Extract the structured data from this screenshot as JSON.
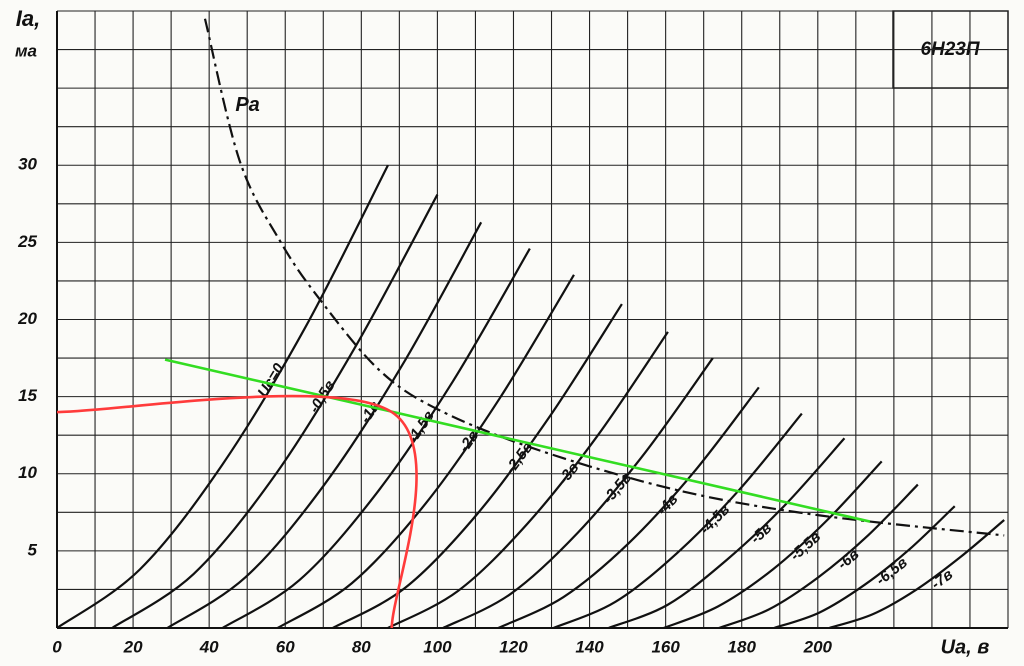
{
  "chart_data": {
    "type": "line",
    "title": "6Н23П",
    "x_label": "Uа, в",
    "y_label": [
      "Iа,",
      "ма"
    ],
    "xlim": [
      0,
      250
    ],
    "ylim": [
      0,
      40
    ],
    "xticks": [
      0,
      20,
      40,
      60,
      80,
      100,
      120,
      140,
      160,
      180,
      200
    ],
    "yticks": [
      5,
      10,
      15,
      20,
      25,
      30
    ],
    "xgrid": [
      0,
      10,
      20,
      30,
      40,
      50,
      60,
      70,
      80,
      90,
      100,
      110,
      120,
      130,
      140,
      150,
      160,
      170,
      180,
      190,
      200,
      210,
      220,
      230,
      240,
      250
    ],
    "ygrid": [
      0,
      2.5,
      5,
      7.5,
      10,
      12.5,
      15,
      17.5,
      20,
      22.5,
      25,
      27.5,
      30,
      32.5,
      35,
      37.5,
      40
    ],
    "series": [
      {
        "name": "Uс=0",
        "color": "#111111",
        "x": [
          0,
          21.8,
          43.5,
          65.3,
          87
        ],
        "values": [
          0,
          3.8,
          10.6,
          19.5,
          30
        ]
      },
      {
        "name": "-0,5в",
        "color": "#111111",
        "x": [
          14.5,
          35.9,
          57.3,
          78.6,
          100
        ],
        "values": [
          0,
          3.5,
          9.9,
          18.3,
          28.1
        ]
      },
      {
        "name": "-1в",
        "color": "#111111",
        "x": [
          29,
          49.6,
          70.3,
          90.9,
          111.5
        ],
        "values": [
          0,
          3.3,
          9.3,
          17.1,
          26.3
        ]
      },
      {
        "name": "-1,5в",
        "color": "#111111",
        "x": [
          43.5,
          63.7,
          83.9,
          104.1,
          124.3
        ],
        "values": [
          0,
          3.1,
          8.7,
          16.0,
          24.6
        ]
      },
      {
        "name": "-2в",
        "color": "#111111",
        "x": [
          58,
          77.5,
          97,
          116.4,
          135.9
        ],
        "values": [
          0,
          2.9,
          8.1,
          14.9,
          22.9
        ]
      },
      {
        "name": "-2,5в",
        "color": "#111111",
        "x": [
          72.5,
          91.5,
          110.5,
          129.5,
          148.5
        ],
        "values": [
          0,
          2.6,
          7.4,
          13.7,
          21
        ]
      },
      {
        "name": "-3в",
        "color": "#111111",
        "x": [
          87,
          105.4,
          123.8,
          142.2,
          160.6
        ],
        "values": [
          0,
          2.4,
          6.8,
          12.5,
          19.2
        ]
      },
      {
        "name": "-3,5в",
        "color": "#111111",
        "x": [
          101.5,
          119.2,
          137,
          154.7,
          172.4
        ],
        "values": [
          0,
          2.2,
          6.2,
          11.4,
          17.5
        ]
      },
      {
        "name": "-4в",
        "color": "#111111",
        "x": [
          116,
          133.1,
          150.3,
          167.4,
          184.5
        ],
        "values": [
          0,
          2.0,
          5.5,
          10.1,
          15.6
        ]
      },
      {
        "name": "-4,5в",
        "color": "#111111",
        "x": [
          130.5,
          146.8,
          163.2,
          179.5,
          195.8
        ],
        "values": [
          0,
          1.7,
          4.9,
          9.0,
          13.9
        ]
      },
      {
        "name": "-5в",
        "color": "#111111",
        "x": [
          145,
          160.5,
          176,
          191.5,
          207
        ],
        "values": [
          0,
          1.5,
          4.4,
          8.0,
          12.3
        ]
      },
      {
        "name": "-5,5в",
        "color": "#111111",
        "x": [
          159.5,
          173.8,
          188.2,
          202.5,
          216.8
        ],
        "values": [
          0,
          1.4,
          3.8,
          7.0,
          10.8
        ]
      },
      {
        "name": "-6в",
        "color": "#111111",
        "x": [
          174,
          187.1,
          200.2,
          213.2,
          226.3
        ],
        "values": [
          0,
          1.2,
          3.3,
          6.0,
          9.3
        ]
      },
      {
        "name": "-6,5в",
        "color": "#111111",
        "x": [
          188.5,
          200.4,
          212.3,
          224.1,
          236
        ],
        "values": [
          0,
          1.0,
          2.8,
          5.1,
          7.9
        ]
      },
      {
        "name": "-7в",
        "color": "#111111",
        "x": [
          203,
          214.5,
          226,
          237.5,
          249
        ],
        "values": [
          0,
          0.9,
          2.5,
          4.6,
          7
        ]
      },
      {
        "name": "Pа",
        "color": "#111111",
        "style": "dashdot",
        "x": [
          38.9,
          48,
          58.6,
          69.1,
          84.8,
          100.7,
          127,
          163.7,
          200.5,
          249
        ],
        "values": [
          39.5,
          30.3,
          25.1,
          21.3,
          16.7,
          14.1,
          11.5,
          8.9,
          7.3,
          6.0
        ]
      },
      {
        "color": "#33dd22",
        "x": [
          28.4,
          213.7
        ],
        "values": [
          17.4,
          6.9
        ]
      },
      {
        "color": "#ff3b3b",
        "x": [
          0,
          88,
          88
        ],
        "values": [
          14,
          14,
          0
        ]
      }
    ]
  }
}
